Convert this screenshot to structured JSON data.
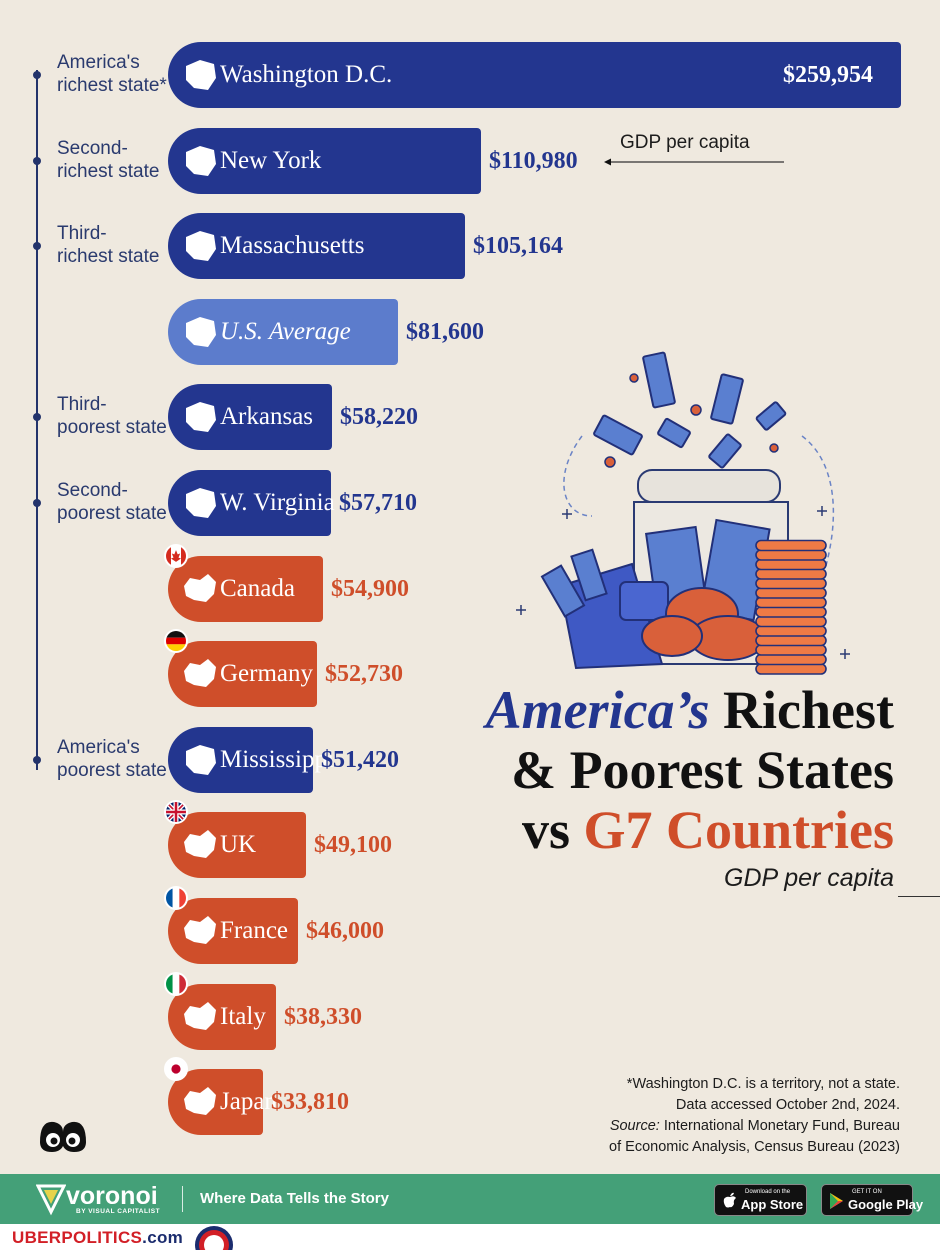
{
  "chart_data": {
    "type": "bar",
    "title_parts": [
      "America’s",
      "Richest",
      "& Poorest States",
      "vs",
      "G7 Countries"
    ],
    "subtitle": "GDP per capita",
    "value_annotation": "GDP per capita",
    "categories": [
      "Washington D.C.",
      "New York",
      "Massachusetts",
      "U.S. Average",
      "Arkansas",
      "W. Virginia",
      "Canada",
      "Germany",
      "Mississippi",
      "UK",
      "France",
      "Italy",
      "Japan"
    ],
    "values": [
      259954,
      110980,
      105164,
      81600,
      58220,
      57710,
      54900,
      52730,
      51420,
      49100,
      46000,
      38330,
      33810
    ],
    "value_labels": [
      "$259,954",
      "$110,980",
      "$105,164",
      "$81,600",
      "$58,220",
      "$57,710",
      "$54,900",
      "$52,730",
      "$51,420",
      "$49,100",
      "$46,000",
      "$38,330",
      "$33,810"
    ],
    "groups": [
      "state",
      "state",
      "state",
      "avg",
      "state",
      "state",
      "country",
      "country",
      "state",
      "country",
      "country",
      "country",
      "country"
    ],
    "row_labels": [
      "America's richest state*",
      "Second-richest state",
      "Third-richest state",
      "",
      "Third-poorest state",
      "Second-poorest state",
      "",
      "",
      "America's poorest state",
      "",
      "",
      "",
      ""
    ],
    "row_label_lines": [
      [
        "America's",
        "richest state*"
      ],
      [
        "Second-",
        "richest state"
      ],
      [
        "Third-",
        "richest state"
      ],
      [],
      [
        "Third-",
        "poorest state"
      ],
      [
        "Second-",
        "poorest state"
      ],
      [],
      [],
      [
        "America's",
        "poorest state"
      ],
      [],
      [],
      [],
      []
    ],
    "flags": [
      "",
      "",
      "",
      "",
      "",
      "",
      "canada-flag",
      "germany-flag",
      "",
      "uk-flag",
      "france-flag",
      "italy-flag",
      "japan-flag"
    ],
    "colors": {
      "state": "#23368f",
      "avg": "#5c7ccc",
      "country": "#cf4e2a"
    }
  },
  "notes": {
    "line1": "*Washington D.C. is a territory, not a state.",
    "line2": "Data accessed October 2nd, 2024.",
    "source_label": "Source:",
    "source_text": " International Monetary Fund, Bureau",
    "line4": "of Economic Analysis, Census Bureau (2023)"
  },
  "footer": {
    "brand": "voronoi",
    "brand_sub": "BY VISUAL CAPITALIST",
    "tagline": "Where Data Tells the Story",
    "app_store_small": "Download on the",
    "app_store": "App Store",
    "google_small": "GET IT ON",
    "google": "Google Play"
  },
  "site": {
    "part1": "UBERPOLITICS",
    "part2": ".com"
  }
}
